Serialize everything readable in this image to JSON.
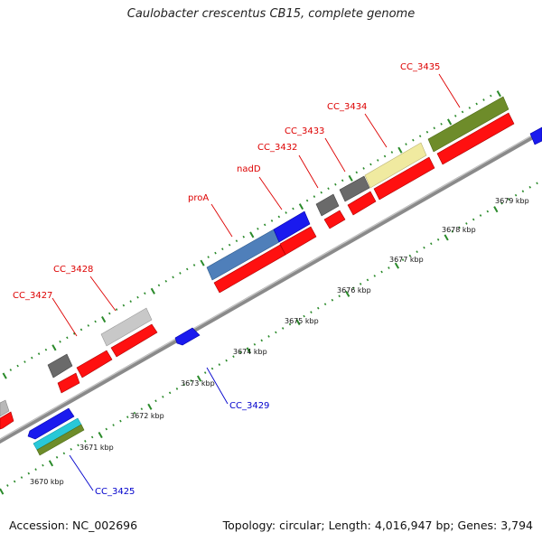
{
  "title": "Caulobacter crescentus CB15, complete genome",
  "footer": {
    "accession": "Accession: NC_002696",
    "summary": "Topology: circular; Length: 4,016,947 bp; Genes: 3,794"
  },
  "colors": {
    "label_top": "#dd0000",
    "label_bottom": "#0000cc",
    "ticks": "#2a8a2a",
    "backbone": "#8a8a8a"
  },
  "scale_labels": [
    "3670 kbp",
    "3671 kbp",
    "3672 kbp",
    "3673 kbp",
    "3674 kbp",
    "3675 kbp",
    "3676 kbp",
    "3677 kbp",
    "3678 kbp",
    "3679 kbp"
  ],
  "top_labels": [
    "CC_3427",
    "CC_3428",
    "proA",
    "nadD",
    "CC_3432",
    "CC_3433",
    "CC_3434",
    "CC_3435"
  ],
  "bottom_labels": [
    "CC_3429",
    "CC_3425"
  ]
}
